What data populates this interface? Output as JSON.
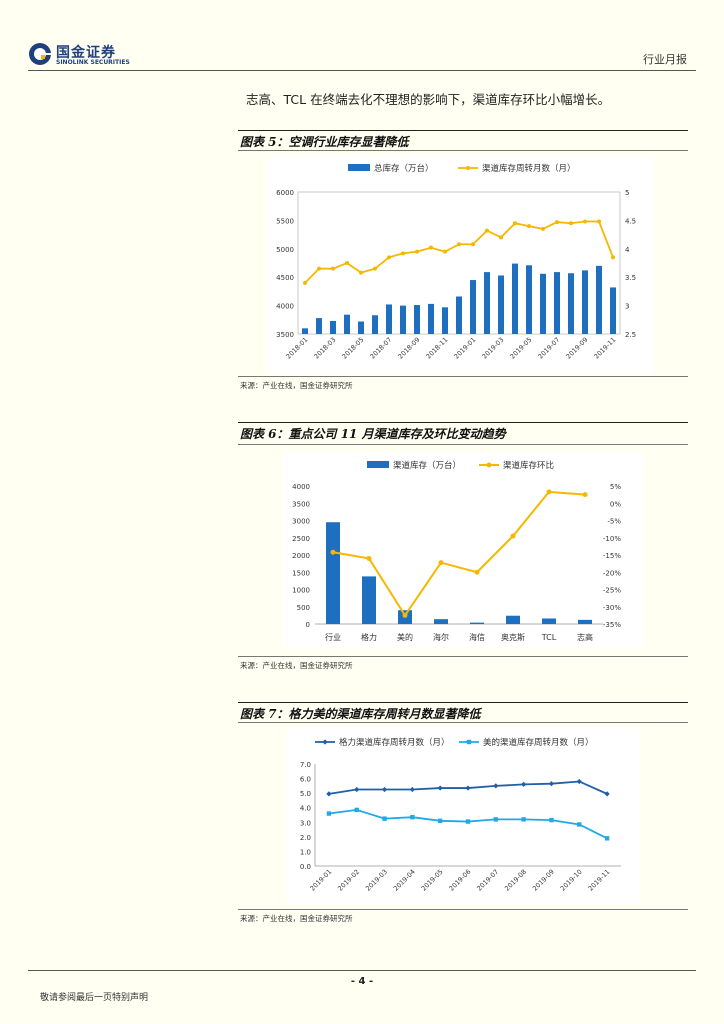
{
  "header": {
    "logo_cn": "国金证券",
    "logo_en": "SINOLINK SECURITIES",
    "doc_type": "行业月报"
  },
  "intro_text": "志高、TCL 在终端去化不理想的影响下，渠道库存环比小幅增长。",
  "figure5": {
    "title": "图表 5：空调行业库存显著降低",
    "source": "来源：产业在线，国金证券研究所"
  },
  "figure6": {
    "title": "图表 6：重点公司 11 月渠道库存及环比变动趋势",
    "source": "来源：产业在线，国金证券研究所"
  },
  "figure7": {
    "title": "图表 7：格力美的渠道库存周转月数显著降低",
    "source": "来源：产业在线，国金证券研究所"
  },
  "footer": {
    "page_number": "- 4 -",
    "disclaimer": "敬请参阅最后一页特别声明"
  },
  "colors": {
    "bar_blue": "#1f6fc0",
    "line_yellow": "#f5b800",
    "line_dark_blue": "#1f5fa8",
    "line_light_blue": "#1fa9e8"
  },
  "chart_data": [
    {
      "id": "fig5",
      "type": "bar-line",
      "categories": [
        "2018-01",
        "2018-02",
        "2018-03",
        "2018-04",
        "2018-05",
        "2018-06",
        "2018-07",
        "2018-08",
        "2018-09",
        "2018-10",
        "2018-11",
        "2018-12",
        "2019-01",
        "2019-02",
        "2019-03",
        "2019-04",
        "2019-05",
        "2019-06",
        "2019-07",
        "2019-08",
        "2019-09",
        "2019-10",
        "2019-11"
      ],
      "tick_labels": [
        "2018-01",
        "",
        "2018-03",
        "",
        "2018-05",
        "",
        "2018-07",
        "",
        "2018-09",
        "",
        "2018-11",
        "",
        "2019-01",
        "",
        "2019-03",
        "",
        "2019-05",
        "",
        "2019-07",
        "",
        "2019-09",
        "",
        "2019-11"
      ],
      "series": [
        {
          "name": "总库存（万台）",
          "type": "bar",
          "axis": "left",
          "values": [
            3600,
            3780,
            3730,
            3840,
            3720,
            3830,
            4020,
            4000,
            4010,
            4030,
            3970,
            4160,
            4450,
            4590,
            4530,
            4740,
            4710,
            4560,
            4590,
            4570,
            4620,
            4700,
            4320
          ]
        },
        {
          "name": "渠道库存周转月数（月）",
          "type": "line",
          "axis": "right",
          "values": [
            3.4,
            3.65,
            3.65,
            3.75,
            3.58,
            3.65,
            3.85,
            3.92,
            3.95,
            4.02,
            3.95,
            4.08,
            4.08,
            4.32,
            4.2,
            4.45,
            4.4,
            4.35,
            4.47,
            4.45,
            4.48,
            4.48,
            3.85
          ]
        }
      ],
      "ylim_left": [
        3500,
        6000
      ],
      "yticks_left": [
        3500,
        4000,
        4500,
        5000,
        5500,
        6000
      ],
      "ylim_right": [
        2.5,
        5
      ],
      "yticks_right": [
        2.5,
        3,
        3.5,
        4,
        4.5,
        5
      ]
    },
    {
      "id": "fig6",
      "type": "bar-line",
      "categories": [
        "行业",
        "格力",
        "美的",
        "海尔",
        "海信",
        "奥克斯",
        "TCL",
        "志高"
      ],
      "series": [
        {
          "name": "渠道库存（万台）",
          "type": "bar",
          "axis": "left",
          "values": [
            2950,
            1380,
            400,
            140,
            40,
            240,
            160,
            120
          ]
        },
        {
          "name": "渠道库存环比",
          "type": "line",
          "axis": "right",
          "values": [
            -14.2,
            -16,
            -32.5,
            -17.2,
            -20,
            -9.5,
            3.3,
            2.5
          ]
        }
      ],
      "ylim_left": [
        0,
        4000
      ],
      "yticks_left": [
        0,
        500,
        1000,
        1500,
        2000,
        2500,
        3000,
        3500,
        4000
      ],
      "ylim_right": [
        -35,
        5
      ],
      "yticks_right": [
        -35,
        -30,
        -25,
        -20,
        -15,
        -10,
        -5,
        0,
        5
      ],
      "right_tick_suffix": "%"
    },
    {
      "id": "fig7",
      "type": "line",
      "categories": [
        "2019-01",
        "2019-02",
        "2019-03",
        "2019-04",
        "2019-05",
        "2019-06",
        "2019-07",
        "2019-08",
        "2019-09",
        "2019-10",
        "2019-11"
      ],
      "series": [
        {
          "name": "格力渠道库存周转月数（月）",
          "values": [
            4.95,
            5.25,
            5.25,
            5.25,
            5.35,
            5.35,
            5.5,
            5.6,
            5.65,
            5.8,
            4.95
          ]
        },
        {
          "name": "美的渠道库存周转月数（月）",
          "values": [
            3.6,
            3.85,
            3.25,
            3.35,
            3.1,
            3.05,
            3.2,
            3.2,
            3.15,
            2.85,
            1.9
          ]
        }
      ],
      "ylim": [
        0,
        7
      ],
      "yticks": [
        "0.0",
        "1.0",
        "2.0",
        "3.0",
        "4.0",
        "5.0",
        "6.0",
        "7.0"
      ]
    }
  ]
}
